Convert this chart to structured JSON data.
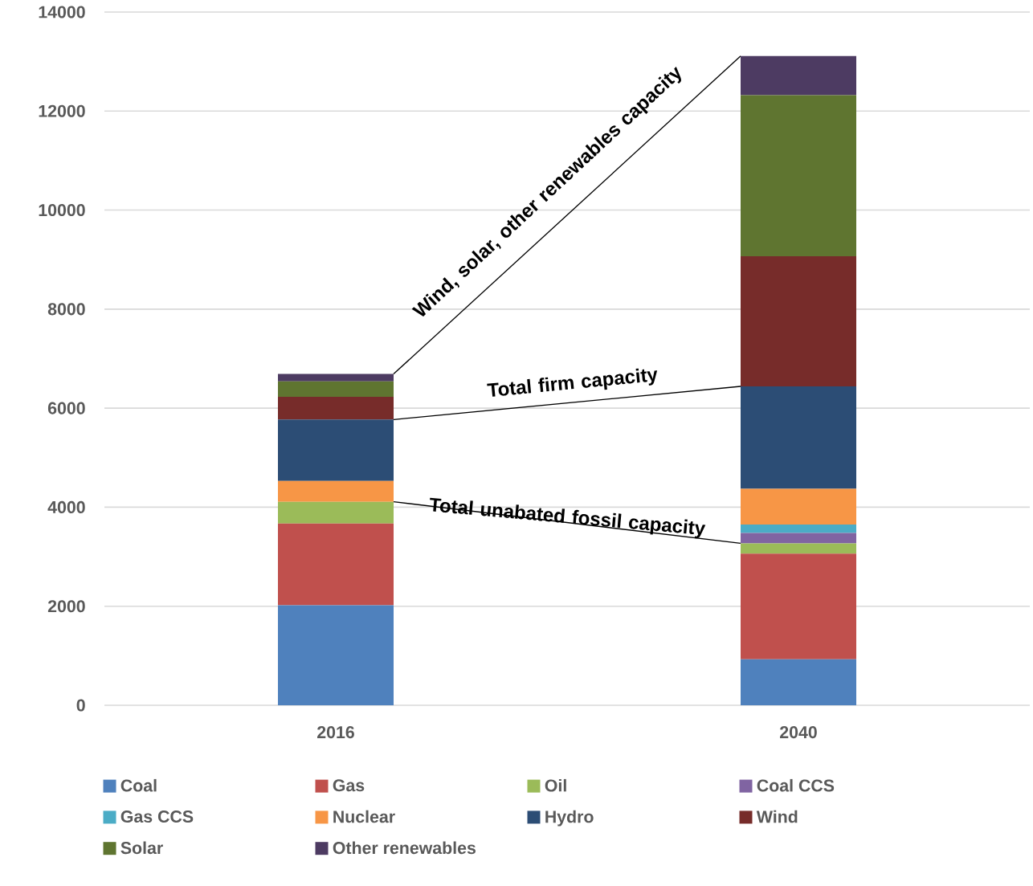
{
  "chart_data": {
    "type": "bar",
    "stacked": true,
    "categories": [
      "2016",
      "2040"
    ],
    "series": [
      {
        "name": "Coal",
        "color": "#4f81bd",
        "values": [
          2020,
          930
        ]
      },
      {
        "name": "Gas",
        "color": "#c0504d",
        "values": [
          1650,
          2130
        ]
      },
      {
        "name": "Oil",
        "color": "#9bbb59",
        "values": [
          440,
          210
        ]
      },
      {
        "name": "Coal CCS",
        "color": "#8064a2",
        "values": [
          0,
          210
        ]
      },
      {
        "name": "Gas CCS",
        "color": "#4bacc6",
        "values": [
          0,
          170
        ]
      },
      {
        "name": "Nuclear",
        "color": "#f79646",
        "values": [
          420,
          720
        ]
      },
      {
        "name": "Hydro",
        "color": "#2c4d75",
        "values": [
          1240,
          2070
        ]
      },
      {
        "name": "Wind",
        "color": "#772c2a",
        "values": [
          460,
          2630
        ]
      },
      {
        "name": "Solar",
        "color": "#5f7530",
        "values": [
          310,
          3250
        ]
      },
      {
        "name": "Other renewables",
        "color": "#4d3b62",
        "values": [
          150,
          790
        ]
      }
    ],
    "ylim": [
      0,
      14000
    ],
    "yticks": [
      0,
      2000,
      4000,
      6000,
      8000,
      10000,
      12000,
      14000
    ],
    "grid": "y",
    "legend": "bottom",
    "annotations": [
      "Wind, solar, other renewables capacity",
      "Total firm capacity",
      "Total unabated fossil capacity"
    ]
  }
}
